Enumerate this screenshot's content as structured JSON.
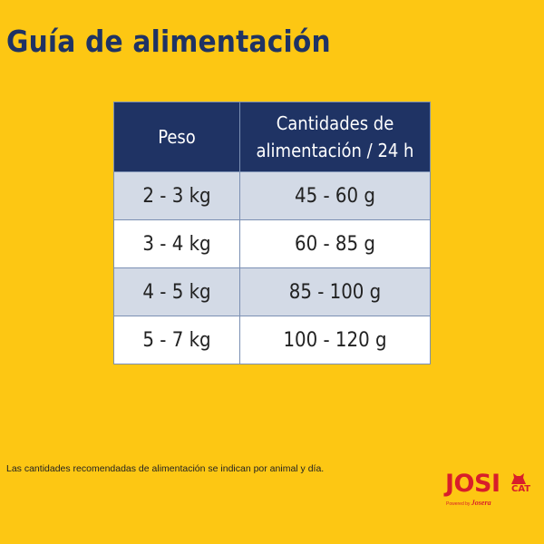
{
  "title": "Guía de alimentación",
  "table": {
    "headers": [
      "Peso",
      "Cantidades de alimentación / 24 h"
    ],
    "rows": [
      [
        "2 - 3 kg",
        "45 - 60 g"
      ],
      [
        "3 - 4 kg",
        "60 - 85 g"
      ],
      [
        "4 - 5 kg",
        "85 - 100 g"
      ],
      [
        "5 - 7 kg",
        "100 - 120 g"
      ]
    ]
  },
  "footnote": "Las cantidades recomendadas de alimentación se indican por animal y día.",
  "logo": {
    "brand": "JOSI",
    "sub": "CAT",
    "powered_by": "Powered by",
    "maker": "Josera"
  },
  "colors": {
    "background": "#FDC713",
    "header": "#1F3364",
    "row_shade": "#D3DAE6",
    "brand_red": "#D81E2A"
  }
}
